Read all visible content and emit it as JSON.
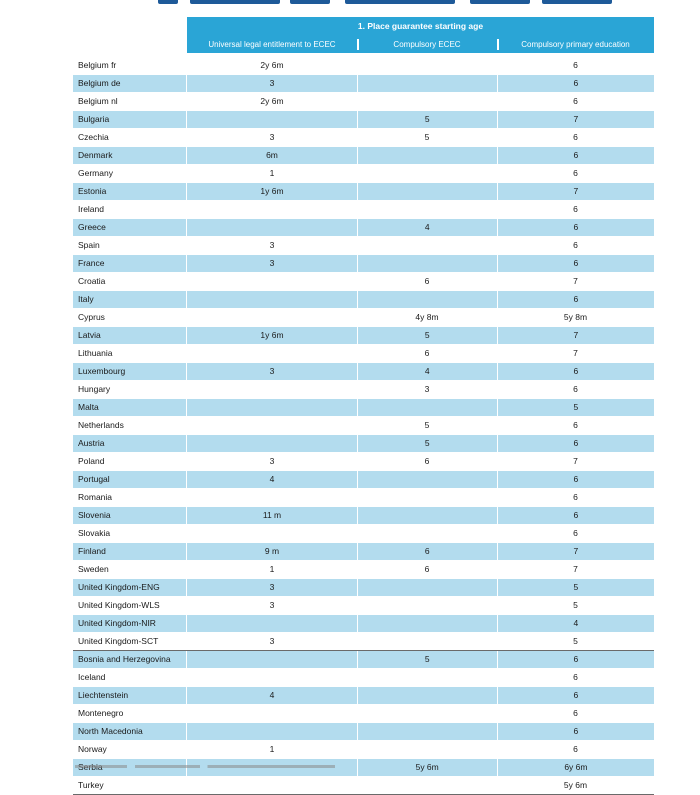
{
  "header": {
    "group_title": "1. Place guarantee starting age",
    "columns": [
      "Universal legal entitlement to ECEC",
      "Compulsory ECEC",
      "Compulsory primary education"
    ]
  },
  "rows": [
    {
      "country": "Belgium fr",
      "c1": "2y 6m",
      "c2": "",
      "c3": "6"
    },
    {
      "country": "Belgium de",
      "c1": "3",
      "c2": "",
      "c3": "6"
    },
    {
      "country": "Belgium nl",
      "c1": "2y 6m",
      "c2": "",
      "c3": "6"
    },
    {
      "country": "Bulgaria",
      "c1": "",
      "c2": "5",
      "c3": "7"
    },
    {
      "country": "Czechia",
      "c1": "3",
      "c2": "5",
      "c3": "6"
    },
    {
      "country": "Denmark",
      "c1": "6m",
      "c2": "",
      "c3": "6"
    },
    {
      "country": "Germany",
      "c1": "1",
      "c2": "",
      "c3": "6"
    },
    {
      "country": "Estonia",
      "c1": "1y 6m",
      "c2": "",
      "c3": "7"
    },
    {
      "country": "Ireland",
      "c1": "",
      "c2": "",
      "c3": "6"
    },
    {
      "country": "Greece",
      "c1": "",
      "c2": "4",
      "c3": "6"
    },
    {
      "country": "Spain",
      "c1": "3",
      "c2": "",
      "c3": "6"
    },
    {
      "country": "France",
      "c1": "3",
      "c2": "",
      "c3": "6"
    },
    {
      "country": "Croatia",
      "c1": "",
      "c2": "6",
      "c3": "7"
    },
    {
      "country": "Italy",
      "c1": "",
      "c2": "",
      "c3": "6"
    },
    {
      "country": "Cyprus",
      "c1": "",
      "c2": "4y 8m",
      "c3": "5y 8m"
    },
    {
      "country": "Latvia",
      "c1": "1y 6m",
      "c2": "5",
      "c3": "7"
    },
    {
      "country": "Lithuania",
      "c1": "",
      "c2": "6",
      "c3": "7"
    },
    {
      "country": "Luxembourg",
      "c1": "3",
      "c2": "4",
      "c3": "6"
    },
    {
      "country": "Hungary",
      "c1": "",
      "c2": "3",
      "c3": "6"
    },
    {
      "country": "Malta",
      "c1": "",
      "c2": "",
      "c3": "5"
    },
    {
      "country": "Netherlands",
      "c1": "",
      "c2": "5",
      "c3": "6"
    },
    {
      "country": "Austria",
      "c1": "",
      "c2": "5",
      "c3": "6"
    },
    {
      "country": "Poland",
      "c1": "3",
      "c2": "6",
      "c3": "7"
    },
    {
      "country": "Portugal",
      "c1": "4",
      "c2": "",
      "c3": "6"
    },
    {
      "country": "Romania",
      "c1": "",
      "c2": "",
      "c3": "6"
    },
    {
      "country": "Slovenia",
      "c1": "11 m",
      "c2": "",
      "c3": "6"
    },
    {
      "country": "Slovakia",
      "c1": "",
      "c2": "",
      "c3": "6"
    },
    {
      "country": "Finland",
      "c1": "9 m",
      "c2": "6",
      "c3": "7"
    },
    {
      "country": "Sweden",
      "c1": "1",
      "c2": "6",
      "c3": "7"
    },
    {
      "country": "United Kingdom-ENG",
      "c1": "3",
      "c2": "",
      "c3": "5"
    },
    {
      "country": "United Kingdom-WLS",
      "c1": "3",
      "c2": "",
      "c3": "5"
    },
    {
      "country": "United Kingdom-NIR",
      "c1": "",
      "c2": "",
      "c3": "4"
    },
    {
      "country": "United Kingdom-SCT",
      "c1": "3",
      "c2": "",
      "c3": "5"
    },
    {
      "country": "Bosnia and Herzegovina",
      "c1": "",
      "c2": "5",
      "c3": "6"
    },
    {
      "country": "Iceland",
      "c1": "",
      "c2": "",
      "c3": "6"
    },
    {
      "country": "Liechtenstein",
      "c1": "4",
      "c2": "",
      "c3": "6"
    },
    {
      "country": "Montenegro",
      "c1": "",
      "c2": "",
      "c3": "6"
    },
    {
      "country": "North Macedonia",
      "c1": "",
      "c2": "",
      "c3": "6"
    },
    {
      "country": "Norway",
      "c1": "1",
      "c2": "",
      "c3": "6"
    },
    {
      "country": "Serbia",
      "c1": "",
      "c2": "5y 6m",
      "c3": "6y 6m"
    },
    {
      "country": "Turkey",
      "c1": "",
      "c2": "",
      "c3": "5y 6m"
    }
  ],
  "colors": {
    "header_band": "#2aa5d6",
    "row_shade": "#b3dcee",
    "title_strip": "#1e5a99"
  }
}
